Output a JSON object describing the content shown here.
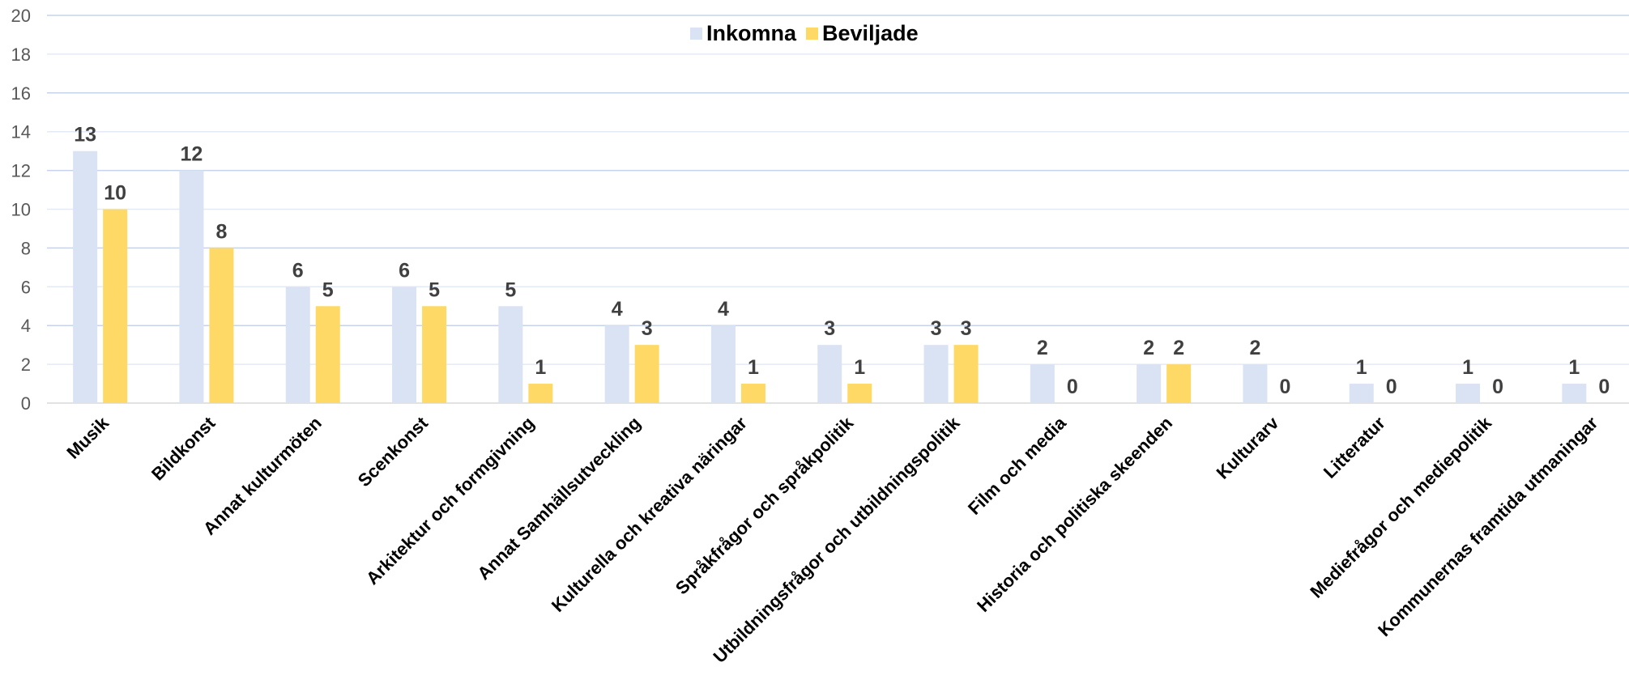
{
  "chart_data": {
    "type": "bar",
    "categories": [
      "Musik",
      "Bildkonst",
      "Annat kulturmöten",
      "Scenkonst",
      "Arkitektur och formgivning",
      "Annat Samhällsutveckling",
      "Kulturella och kreativa näringar",
      "Språkfrågor och språkpolitik",
      "Utbildningsfrågor och utbildningspolitik",
      "Film och media",
      "Historia och politiska skeenden",
      "Kulturarv",
      "Litteratur",
      "Mediefrågor och mediepolitik",
      "Kommunernas framtida utmaningar"
    ],
    "series": [
      {
        "name": "Inkomna",
        "color": "#dae3f3",
        "values": [
          13,
          12,
          6,
          6,
          5,
          4,
          4,
          3,
          3,
          2,
          2,
          2,
          1,
          1,
          1
        ]
      },
      {
        "name": "Beviljade",
        "color": "#ffd966",
        "values": [
          10,
          8,
          5,
          5,
          1,
          3,
          1,
          1,
          3,
          0,
          2,
          0,
          0,
          0,
          0
        ]
      }
    ],
    "yticks": [
      "0",
      "2",
      "4",
      "6",
      "8",
      "10",
      "12",
      "14",
      "16",
      "18",
      "20"
    ],
    "ylim": [
      0,
      20
    ],
    "grid": true,
    "legend_position": "top-center",
    "data_labels": true
  }
}
